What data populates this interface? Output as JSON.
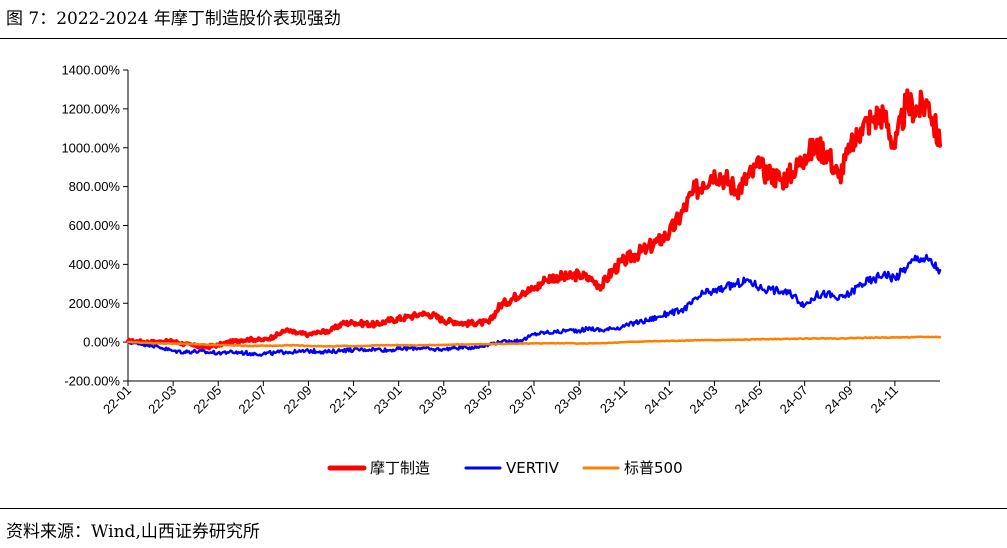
{
  "figure": {
    "title": "图 7：2022-2024 年摩丁制造股价表现强劲",
    "source": "资料来源：Wind,山西证券研究所"
  },
  "chart_data": {
    "type": "line",
    "title": "2022-2024 年摩丁制造股价表现强劲",
    "xlabel": "",
    "ylabel": "",
    "ylim": [
      -200,
      1400
    ],
    "y_ticks": [
      -200,
      0,
      200,
      400,
      600,
      800,
      1000,
      1200,
      1400
    ],
    "y_tick_labels": [
      "-200.00%",
      "0.00%",
      "200.00%",
      "400.00%",
      "600.00%",
      "800.00%",
      "1000.00%",
      "1200.00%",
      "1400.00%"
    ],
    "x_range": [
      0,
      36
    ],
    "x_tick_positions": [
      0,
      2,
      4,
      6,
      8,
      10,
      12,
      14,
      16,
      18,
      20,
      22,
      24,
      26,
      28,
      30,
      32,
      34
    ],
    "x_tick_labels": [
      "22-01",
      "22-03",
      "22-05",
      "22-07",
      "22-09",
      "22-11",
      "23-01",
      "23-03",
      "23-05",
      "23-07",
      "23-09",
      "23-11",
      "24-01",
      "24-03",
      "24-05",
      "24-07",
      "24-09",
      "24-11"
    ],
    "legend_position": "bottom",
    "series": [
      {
        "name": "摩丁制造",
        "color": "#ff0000",
        "x": [
          0,
          0.5,
          1,
          1.5,
          2,
          2.5,
          3,
          3.5,
          4,
          4.5,
          5,
          5.5,
          6,
          6.5,
          7,
          7.5,
          8,
          8.5,
          9,
          9.5,
          10,
          10.5,
          11,
          11.5,
          12,
          12.5,
          13,
          13.5,
          14,
          14.5,
          15,
          15.5,
          16,
          16.5,
          17,
          17.5,
          18,
          18.5,
          19,
          19.5,
          20,
          20.5,
          21,
          21.5,
          22,
          22.5,
          23,
          23.5,
          24,
          24.5,
          25,
          25.5,
          26,
          26.5,
          27,
          27.5,
          28,
          28.5,
          29,
          29.5,
          30,
          30.5,
          31,
          31.5,
          32,
          32.5,
          33,
          33.5,
          34,
          34.5,
          35,
          35.5,
          36
        ],
        "values": [
          5,
          3,
          0,
          2,
          5,
          -10,
          -20,
          -25,
          -15,
          0,
          10,
          15,
          10,
          30,
          60,
          45,
          40,
          50,
          60,
          95,
          100,
          95,
          90,
          110,
          120,
          130,
          145,
          140,
          110,
          105,
          95,
          100,
          100,
          190,
          220,
          260,
          270,
          320,
          340,
          330,
          350,
          320,
          290,
          370,
          420,
          450,
          480,
          520,
          560,
          650,
          760,
          820,
          880,
          840,
          780,
          850,
          900,
          860,
          840,
          870,
          960,
          1000,
          980,
          850,
          980,
          1100,
          1150,
          1180,
          1000,
          1220,
          1200,
          1230,
          1010
        ]
      },
      {
        "name": "VERTIV",
        "color": "#0000ff",
        "x": [
          0,
          0.5,
          1,
          1.5,
          2,
          2.5,
          3,
          3.5,
          4,
          4.5,
          5,
          5.5,
          6,
          6.5,
          7,
          7.5,
          8,
          8.5,
          9,
          9.5,
          10,
          10.5,
          11,
          11.5,
          12,
          12.5,
          13,
          13.5,
          14,
          14.5,
          15,
          15.5,
          16,
          16.5,
          17,
          17.5,
          18,
          18.5,
          19,
          19.5,
          20,
          20.5,
          21,
          21.5,
          22,
          22.5,
          23,
          23.5,
          24,
          24.5,
          25,
          25.5,
          26,
          26.5,
          27,
          27.5,
          28,
          28.5,
          29,
          29.5,
          30,
          30.5,
          31,
          31.5,
          32,
          32.5,
          33,
          33.5,
          34,
          34.5,
          35,
          35.5,
          36
        ],
        "values": [
          0,
          -10,
          -15,
          -30,
          -45,
          -50,
          -48,
          -52,
          -55,
          -50,
          -55,
          -58,
          -60,
          -55,
          -50,
          -52,
          -45,
          -48,
          -50,
          -42,
          -40,
          -38,
          -35,
          -42,
          -35,
          -32,
          -30,
          -38,
          -35,
          -30,
          -28,
          -25,
          -10,
          0,
          5,
          10,
          40,
          50,
          50,
          60,
          60,
          70,
          60,
          70,
          80,
          100,
          110,
          130,
          150,
          160,
          200,
          250,
          260,
          280,
          300,
          320,
          280,
          270,
          260,
          240,
          190,
          240,
          250,
          220,
          250,
          300,
          320,
          350,
          330,
          380,
          440,
          420,
          370
        ]
      },
      {
        "name": "标普500",
        "color": "#ff8000",
        "x": [
          0,
          0.5,
          1,
          1.5,
          2,
          2.5,
          3,
          3.5,
          4,
          4.5,
          5,
          5.5,
          6,
          6.5,
          7,
          7.5,
          8,
          8.5,
          9,
          9.5,
          10,
          10.5,
          11,
          11.5,
          12,
          12.5,
          13,
          13.5,
          14,
          14.5,
          15,
          15.5,
          16,
          16.5,
          17,
          17.5,
          18,
          18.5,
          19,
          19.5,
          20,
          20.5,
          21,
          21.5,
          22,
          22.5,
          23,
          23.5,
          24,
          24.5,
          25,
          25.5,
          26,
          26.5,
          27,
          27.5,
          28,
          28.5,
          29,
          29.5,
          30,
          30.5,
          31,
          31.5,
          32,
          32.5,
          33,
          33.5,
          34,
          34.5,
          35,
          35.5,
          36
        ],
        "values": [
          0,
          -2,
          -5,
          -6,
          -8,
          -9,
          -10,
          -13,
          -14,
          -16,
          -18,
          -20,
          -18,
          -19,
          -17,
          -16,
          -20,
          -21,
          -22,
          -19,
          -21,
          -20,
          -17,
          -16,
          -15,
          -17,
          -16,
          -15,
          -14,
          -13,
          -12,
          -11,
          -10,
          -9,
          -8,
          -8,
          -7,
          -6,
          -6,
          -5,
          -7,
          -6,
          -5,
          -3,
          0,
          2,
          4,
          5,
          6,
          7,
          9,
          10,
          10,
          11,
          12,
          13,
          15,
          16,
          16,
          17,
          18,
          19,
          20,
          18,
          21,
          22,
          23,
          24,
          24,
          25,
          26,
          27,
          26
        ]
      }
    ]
  }
}
